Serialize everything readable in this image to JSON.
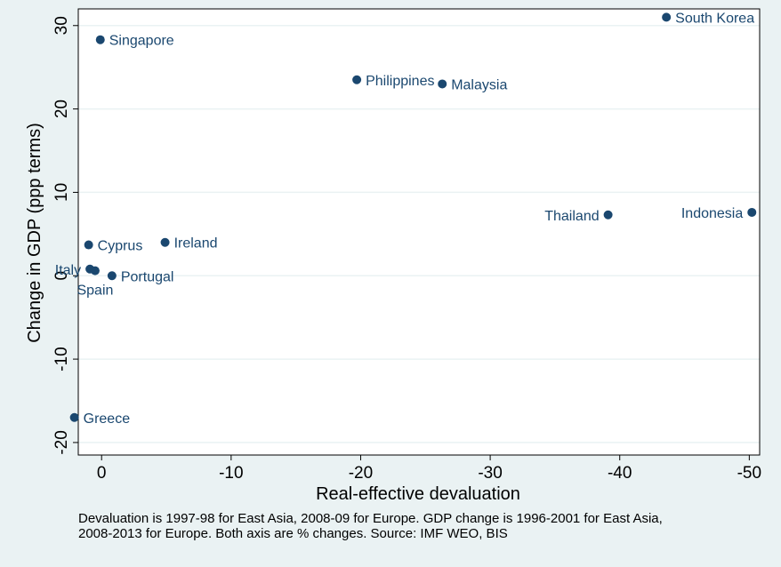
{
  "chart_data": {
    "type": "scatter",
    "title": "",
    "xlabel": "Real-effective devaluation",
    "ylabel": "Change in GDP (ppp terms)",
    "xlim": [
      1.8,
      -50.8
    ],
    "ylim": [
      -21.5,
      32
    ],
    "x_reversed": true,
    "xticks": [
      0,
      -10,
      -20,
      -30,
      -40,
      -50
    ],
    "yticks": [
      -20,
      -10,
      0,
      10,
      20,
      30
    ],
    "grid": true,
    "marker_color": "#1a476f",
    "points": [
      {
        "label": "South Korea",
        "x": -43.6,
        "y": 31.0,
        "pos": "right"
      },
      {
        "label": "Singapore",
        "x": 0.1,
        "y": 28.3,
        "pos": "right"
      },
      {
        "label": "Philippines",
        "x": -19.7,
        "y": 23.5,
        "pos": "right"
      },
      {
        "label": "Malaysia",
        "x": -26.3,
        "y": 23.0,
        "pos": "right"
      },
      {
        "label": "Thailand",
        "x": -39.1,
        "y": 7.3,
        "pos": "left"
      },
      {
        "label": "Indonesia",
        "x": -50.2,
        "y": 7.6,
        "pos": "left"
      },
      {
        "label": "Cyprus",
        "x": 1.0,
        "y": 3.7,
        "pos": "right"
      },
      {
        "label": "Ireland",
        "x": -4.9,
        "y": 4.0,
        "pos": "right"
      },
      {
        "label": "Italy",
        "x": 0.9,
        "y": 0.8,
        "pos": "left"
      },
      {
        "label": "Spain",
        "x": 0.5,
        "y": 0.6,
        "pos": "below"
      },
      {
        "label": "Portugal",
        "x": -0.8,
        "y": 0.0,
        "pos": "right"
      },
      {
        "label": "Greece",
        "x": 2.1,
        "y": -17.0,
        "pos": "right"
      }
    ]
  },
  "note": {
    "line1": "Devaluation is 1997-98 for East Asia, 2008-09 for Europe. GDP change is 1996-2001 for East Asia,",
    "line2": "2008-2013 for Europe. Both axis are % changes. Source: IMF WEO, BIS"
  }
}
